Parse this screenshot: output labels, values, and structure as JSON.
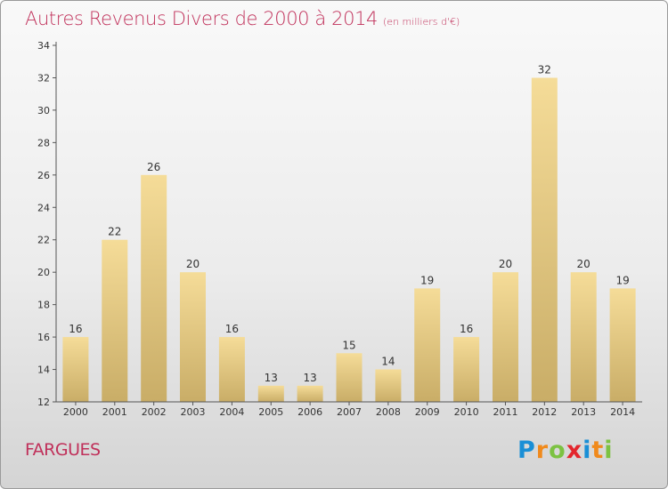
{
  "chart_data": {
    "type": "bar",
    "title": "Autres Revenus Divers de 2000 à 2014",
    "subtitle": "(en milliers d'€)",
    "categories": [
      "2000",
      "2001",
      "2002",
      "2003",
      "2004",
      "2005",
      "2006",
      "2007",
      "2008",
      "2009",
      "2010",
      "2011",
      "2012",
      "2013",
      "2014"
    ],
    "values": [
      16,
      22,
      26,
      20,
      16,
      13,
      13,
      15,
      14,
      19,
      16,
      20,
      32,
      20,
      19
    ],
    "ylim": [
      12,
      34
    ],
    "yticks": [
      12,
      14,
      16,
      18,
      20,
      22,
      24,
      26,
      28,
      30,
      32,
      34
    ],
    "grid": false,
    "bar_color_top": "#f5dc98",
    "bar_color_bottom": "#c9ad67"
  },
  "footer": {
    "commune": "FARGUES",
    "logo": {
      "letters": [
        "P",
        "r",
        "o",
        "x",
        "i",
        "t",
        "i"
      ],
      "colors": [
        "#1a8fd6",
        "#f08a1c",
        "#7cc242",
        "#e3262d",
        "#1a8fd6",
        "#f08a1c",
        "#7cc242"
      ]
    }
  },
  "colors": {
    "accent": "#c0305a"
  }
}
